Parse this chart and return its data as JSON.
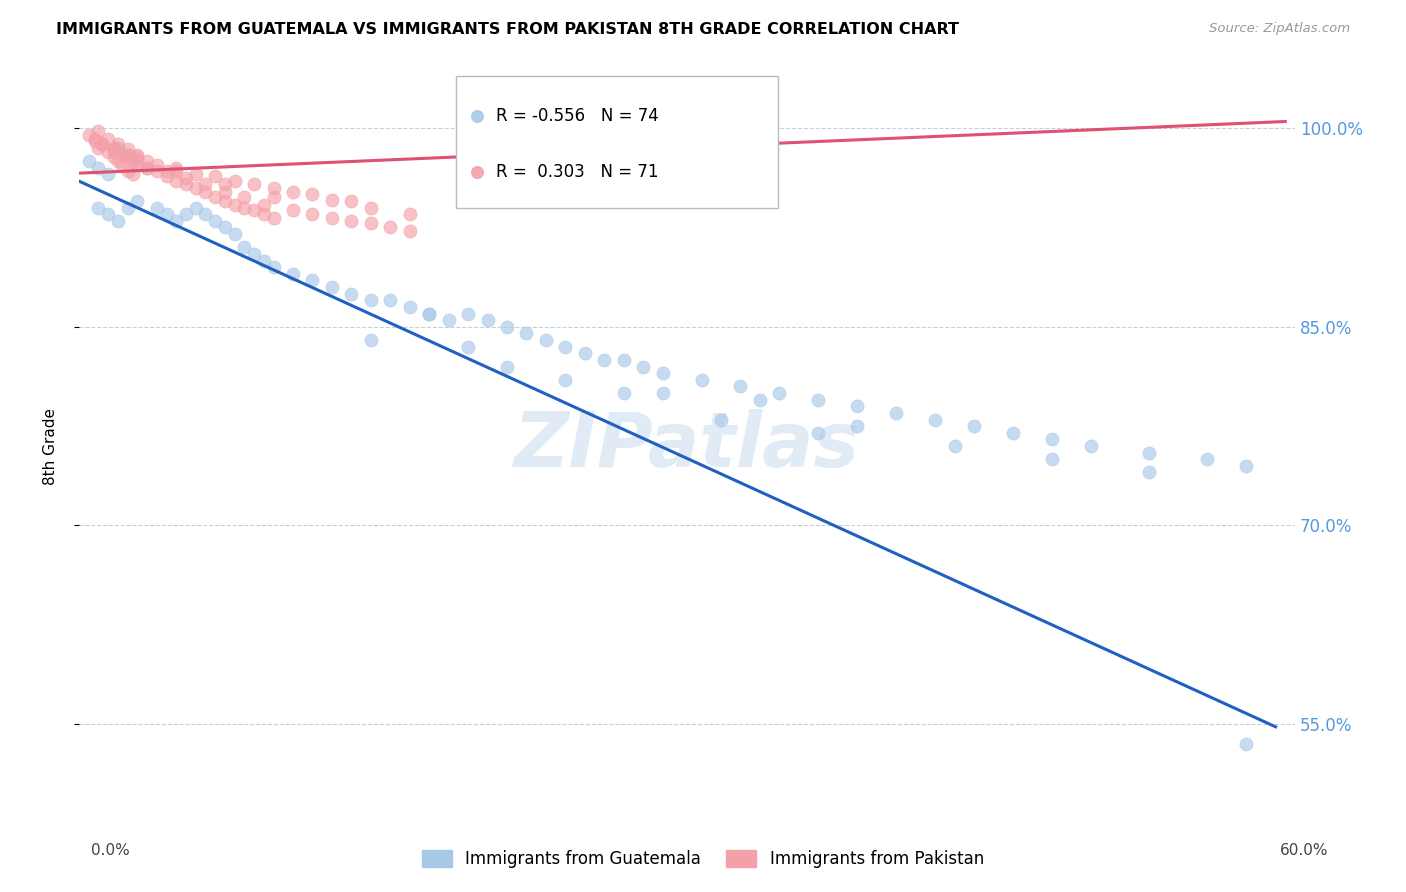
{
  "title": "IMMIGRANTS FROM GUATEMALA VS IMMIGRANTS FROM PAKISTAN 8TH GRADE CORRELATION CHART",
  "source": "Source: ZipAtlas.com",
  "ylabel": "8th Grade",
  "ytick_labels": [
    "100.0%",
    "85.0%",
    "70.0%",
    "55.0%"
  ],
  "ytick_values": [
    1.0,
    0.85,
    0.7,
    0.55
  ],
  "xlim": [
    0.0,
    0.625
  ],
  "ylim": [
    0.475,
    1.045
  ],
  "blue_color": "#A8C8E8",
  "pink_color": "#F4A0A8",
  "blue_line_color": "#2060C0",
  "pink_line_color": "#E05070",
  "watermark": "ZIPatlas",
  "blue_scatter_x": [
    0.005,
    0.01,
    0.015,
    0.02,
    0.025,
    0.03,
    0.035,
    0.01,
    0.015,
    0.02,
    0.025,
    0.03,
    0.04,
    0.045,
    0.05,
    0.055,
    0.06,
    0.065,
    0.07,
    0.075,
    0.08,
    0.085,
    0.09,
    0.095,
    0.1,
    0.11,
    0.12,
    0.13,
    0.14,
    0.15,
    0.16,
    0.17,
    0.18,
    0.19,
    0.2,
    0.21,
    0.22,
    0.23,
    0.24,
    0.25,
    0.26,
    0.27,
    0.28,
    0.29,
    0.3,
    0.32,
    0.34,
    0.36,
    0.38,
    0.4,
    0.42,
    0.44,
    0.46,
    0.48,
    0.5,
    0.52,
    0.55,
    0.58,
    0.6,
    0.15,
    0.2,
    0.25,
    0.3,
    0.35,
    0.4,
    0.45,
    0.5,
    0.55,
    0.22,
    0.28,
    0.18,
    0.33,
    0.38,
    0.6
  ],
  "blue_scatter_y": [
    0.975,
    0.97,
    0.965,
    0.985,
    0.98,
    0.975,
    0.97,
    0.94,
    0.935,
    0.93,
    0.94,
    0.945,
    0.94,
    0.935,
    0.93,
    0.935,
    0.94,
    0.935,
    0.93,
    0.925,
    0.92,
    0.91,
    0.905,
    0.9,
    0.895,
    0.89,
    0.885,
    0.88,
    0.875,
    0.87,
    0.87,
    0.865,
    0.86,
    0.855,
    0.86,
    0.855,
    0.85,
    0.845,
    0.84,
    0.835,
    0.83,
    0.825,
    0.825,
    0.82,
    0.815,
    0.81,
    0.805,
    0.8,
    0.795,
    0.79,
    0.785,
    0.78,
    0.775,
    0.77,
    0.765,
    0.76,
    0.755,
    0.75,
    0.745,
    0.84,
    0.835,
    0.81,
    0.8,
    0.795,
    0.775,
    0.76,
    0.75,
    0.74,
    0.82,
    0.8,
    0.86,
    0.78,
    0.77,
    0.535
  ],
  "pink_scatter_x": [
    0.005,
    0.008,
    0.01,
    0.012,
    0.015,
    0.018,
    0.02,
    0.022,
    0.025,
    0.028,
    0.01,
    0.015,
    0.02,
    0.025,
    0.03,
    0.008,
    0.012,
    0.018,
    0.022,
    0.028,
    0.035,
    0.012,
    0.018,
    0.025,
    0.03,
    0.04,
    0.045,
    0.05,
    0.055,
    0.06,
    0.065,
    0.07,
    0.075,
    0.08,
    0.085,
    0.09,
    0.095,
    0.1,
    0.035,
    0.045,
    0.055,
    0.065,
    0.075,
    0.085,
    0.095,
    0.11,
    0.12,
    0.13,
    0.14,
    0.15,
    0.16,
    0.17,
    0.04,
    0.06,
    0.08,
    0.1,
    0.12,
    0.14,
    0.018,
    0.03,
    0.05,
    0.07,
    0.09,
    0.11,
    0.13,
    0.15,
    0.17,
    0.025,
    0.05,
    0.075,
    0.1
  ],
  "pink_scatter_y": [
    0.995,
    0.99,
    0.985,
    0.988,
    0.982,
    0.978,
    0.975,
    0.972,
    0.968,
    0.965,
    0.998,
    0.992,
    0.988,
    0.984,
    0.98,
    0.992,
    0.988,
    0.984,
    0.98,
    0.975,
    0.97,
    0.988,
    0.982,
    0.978,
    0.972,
    0.968,
    0.964,
    0.96,
    0.958,
    0.955,
    0.952,
    0.948,
    0.945,
    0.942,
    0.94,
    0.938,
    0.935,
    0.932,
    0.975,
    0.968,
    0.962,
    0.958,
    0.952,
    0.948,
    0.942,
    0.938,
    0.935,
    0.932,
    0.93,
    0.928,
    0.925,
    0.922,
    0.972,
    0.965,
    0.96,
    0.955,
    0.95,
    0.945,
    0.985,
    0.978,
    0.97,
    0.964,
    0.958,
    0.952,
    0.946,
    0.94,
    0.935,
    0.98,
    0.968,
    0.958,
    0.948
  ],
  "blue_trend_x": [
    0.0,
    0.615
  ],
  "blue_trend_y": [
    0.96,
    0.548
  ],
  "pink_trend_x": [
    0.0,
    0.62
  ],
  "pink_trend_y": [
    0.966,
    1.005
  ]
}
